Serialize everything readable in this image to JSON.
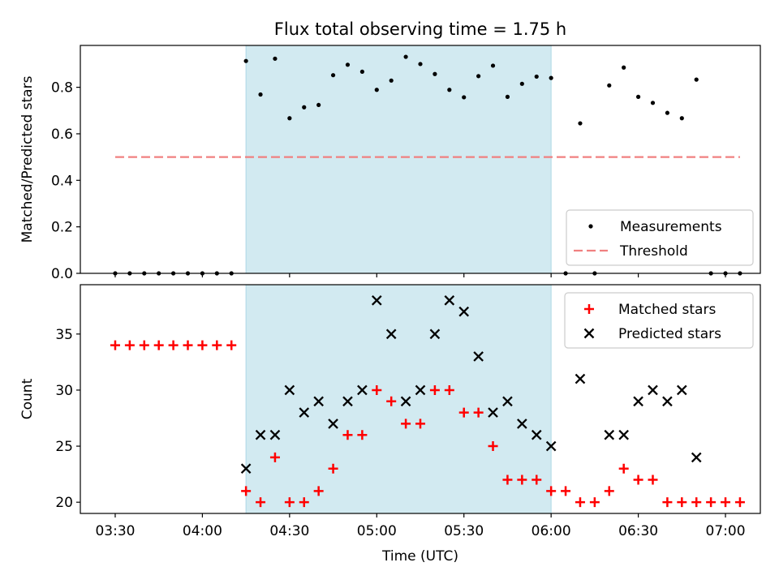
{
  "chart_data": [
    {
      "type": "scatter",
      "title": "Flux total observing time = 1.75 h",
      "ylabel": "Matched/Predicted stars",
      "ylim": [
        0,
        0.98
      ],
      "yticks": [
        "0.0",
        "0.2",
        "0.4",
        "0.6",
        "0.8"
      ],
      "ytick_values": [
        0,
        0.2,
        0.4,
        0.6,
        0.8
      ],
      "shaded_span": [
        "04:15",
        "06:00"
      ],
      "shade_color": "#add8e6",
      "legend": {
        "placement": "lower-right",
        "entries": [
          "Measurements",
          "Threshold"
        ]
      },
      "threshold": {
        "name": "Threshold",
        "value": 0.5,
        "x_from": "03:30",
        "x_to": "07:05",
        "color": "#f08080",
        "style": "dashed"
      },
      "series": [
        {
          "name": "Measurements",
          "marker": "dot",
          "color": "#000000",
          "x": [
            "03:30",
            "03:35",
            "03:40",
            "03:45",
            "03:50",
            "03:55",
            "04:00",
            "04:05",
            "04:10",
            "04:15",
            "04:20",
            "04:25",
            "04:30",
            "04:35",
            "04:40",
            "04:45",
            "04:50",
            "04:55",
            "05:00",
            "05:05",
            "05:10",
            "05:15",
            "05:20",
            "05:25",
            "05:30",
            "05:35",
            "05:40",
            "05:45",
            "05:50",
            "05:55",
            "06:00",
            "06:05",
            "06:10",
            "06:15",
            "06:20",
            "06:25",
            "06:30",
            "06:35",
            "06:40",
            "06:45",
            "06:50",
            "06:55",
            "07:00",
            "07:05"
          ],
          "y": [
            0,
            0,
            0,
            0,
            0,
            0,
            0,
            0,
            0,
            0.913,
            0.769,
            0.923,
            0.667,
            0.714,
            0.724,
            0.852,
            0.897,
            0.867,
            0.789,
            0.829,
            0.931,
            0.9,
            0.857,
            0.789,
            0.757,
            0.848,
            0.893,
            0.759,
            0.815,
            0.846,
            0.84,
            0,
            0.645,
            0,
            0.808,
            0.885,
            0.759,
            0.733,
            0.69,
            0.667,
            0.833,
            0,
            0,
            0
          ]
        }
      ]
    },
    {
      "type": "scatter",
      "xlabel": "Time (UTC)",
      "ylabel": "Count",
      "ylim": [
        19,
        39.4
      ],
      "yticks": [
        "20",
        "25",
        "30",
        "35"
      ],
      "ytick_values": [
        20,
        25,
        30,
        35
      ],
      "xticks": [
        "03:30",
        "04:00",
        "04:30",
        "05:00",
        "05:30",
        "06:00",
        "06:30",
        "07:00"
      ],
      "shaded_span": [
        "04:15",
        "06:00"
      ],
      "shade_color": "#add8e6",
      "legend": {
        "placement": "upper-right",
        "entries": [
          "Matched stars",
          "Predicted stars"
        ]
      },
      "series": [
        {
          "name": "Matched stars",
          "marker": "plus",
          "color": "#ff0000",
          "x": [
            "03:30",
            "03:35",
            "03:40",
            "03:45",
            "03:50",
            "03:55",
            "04:00",
            "04:05",
            "04:10",
            "04:15",
            "04:20",
            "04:25",
            "04:30",
            "04:35",
            "04:40",
            "04:45",
            "04:50",
            "04:55",
            "05:00",
            "05:05",
            "05:10",
            "05:15",
            "05:20",
            "05:25",
            "05:30",
            "05:35",
            "05:40",
            "05:45",
            "05:50",
            "05:55",
            "06:00",
            "06:05",
            "06:10",
            "06:15",
            "06:20",
            "06:25",
            "06:30",
            "06:35",
            "06:40",
            "06:45",
            "06:50",
            "06:55",
            "07:00",
            "07:05"
          ],
          "y": [
            34,
            34,
            34,
            34,
            34,
            34,
            34,
            34,
            34,
            21,
            20,
            24,
            20,
            20,
            21,
            23,
            26,
            26,
            30,
            29,
            27,
            27,
            30,
            30,
            28,
            28,
            25,
            22,
            22,
            22,
            21,
            21,
            20,
            20,
            21,
            23,
            22,
            22,
            20,
            20,
            20,
            20,
            20,
            20
          ]
        },
        {
          "name": "Predicted stars",
          "marker": "x",
          "color": "#000000",
          "x": [
            "04:15",
            "04:20",
            "04:25",
            "04:30",
            "04:35",
            "04:40",
            "04:45",
            "04:50",
            "04:55",
            "05:00",
            "05:05",
            "05:10",
            "05:15",
            "05:20",
            "05:25",
            "05:30",
            "05:35",
            "05:40",
            "05:45",
            "05:50",
            "05:55",
            "06:00",
            "06:10",
            "06:20",
            "06:25",
            "06:30",
            "06:35",
            "06:40",
            "06:45",
            "06:50"
          ],
          "y": [
            23,
            26,
            26,
            30,
            28,
            29,
            27,
            29,
            30,
            38,
            35,
            29,
            30,
            35,
            38,
            37,
            33,
            28,
            29,
            27,
            26,
            25,
            31,
            26,
            26,
            29,
            30,
            29,
            30,
            24
          ]
        }
      ]
    }
  ]
}
